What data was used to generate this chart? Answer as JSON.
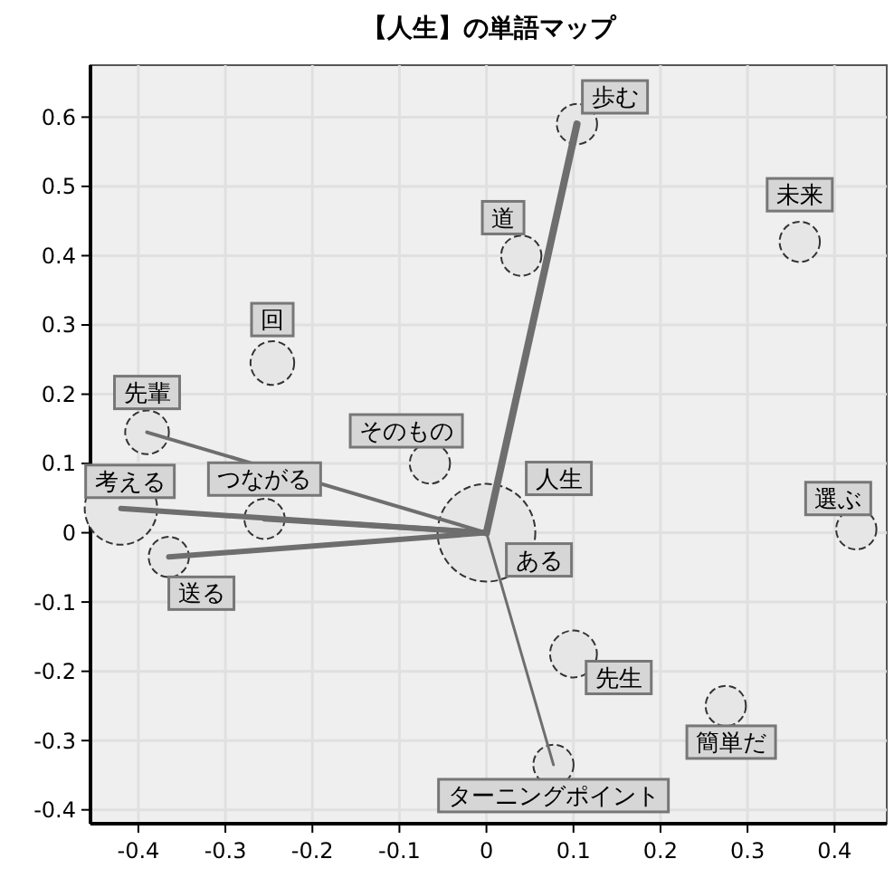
{
  "chart_data": {
    "type": "bubble",
    "title": "【人生】の単語マップ",
    "xlim": [
      -0.455,
      0.46
    ],
    "ylim": [
      -0.42,
      0.675
    ],
    "xticks": [
      -0.4,
      -0.3,
      -0.2,
      -0.1,
      0,
      0.1,
      0.2,
      0.3,
      0.4
    ],
    "yticks": [
      -0.4,
      -0.3,
      -0.2,
      -0.1,
      0,
      0.1,
      0.2,
      0.3,
      0.4,
      0.5,
      0.6
    ],
    "grid": true,
    "series": [
      {
        "type": "line",
        "color": "#6e6e6e",
        "x": [
          0,
          0.104
        ],
        "values": [
          0,
          0.59
        ]
      },
      {
        "type": "line",
        "color": "#6e6e6e",
        "x": [
          0,
          -0.39
        ],
        "values": [
          0,
          0.145
        ]
      },
      {
        "type": "line",
        "color": "#6e6e6e",
        "x": [
          0,
          -0.255
        ],
        "values": [
          0,
          0.02
        ]
      },
      {
        "type": "line",
        "color": "#6e6e6e",
        "x": [
          0,
          -0.42
        ],
        "values": [
          0,
          0.035
        ]
      },
      {
        "type": "line",
        "color": "#6e6e6e",
        "x": [
          0,
          -0.365
        ],
        "values": [
          0,
          -0.035
        ]
      },
      {
        "type": "line",
        "color": "#6e6e6e",
        "x": [
          0,
          0.077
        ],
        "values": [
          0,
          -0.335
        ]
      },
      {
        "color": "#e6e6e6",
        "x": [
          0.104,
          0.04,
          0.36,
          -0.246,
          -0.39,
          -0.065,
          -0.255,
          -0.42,
          -0.365,
          0,
          0.425,
          0.1,
          0.275,
          0.077
        ],
        "values": [
          0.59,
          0.4,
          0.42,
          0.245,
          0.145,
          0.1,
          0.02,
          0.035,
          -0.035,
          0,
          0.005,
          -0.175,
          -0.25,
          -0.335
        ],
        "sizes": [
          0.17,
          0.17,
          0.17,
          0.2,
          0.2,
          0.17,
          0.17,
          0.55,
          0.17,
          1,
          0.17,
          0.23,
          0.17,
          0.17
        ]
      }
    ],
    "annotations": [
      {
        "text": "歩む",
        "x": 0.104,
        "y": 0.59
      },
      {
        "text": "道",
        "x": 0.04,
        "y": 0.4
      },
      {
        "text": "未来",
        "x": 0.36,
        "y": 0.42
      },
      {
        "text": "回",
        "x": -0.246,
        "y": 0.245
      },
      {
        "text": "先輩",
        "x": -0.39,
        "y": 0.145
      },
      {
        "text": "そのもの",
        "x": -0.065,
        "y": 0.1
      },
      {
        "text": "つながる",
        "x": -0.255,
        "y": 0.02
      },
      {
        "text": "考える",
        "x": -0.42,
        "y": 0.035
      },
      {
        "text": "送る",
        "x": -0.365,
        "y": -0.035
      },
      {
        "text": "人生",
        "x": 0,
        "y": 0
      },
      {
        "text": "ある",
        "x": 0,
        "y": 0
      },
      {
        "text": "選ぶ",
        "x": 0.425,
        "y": 0.005
      },
      {
        "text": "先生",
        "x": 0.1,
        "y": -0.175
      },
      {
        "text": "簡単だ",
        "x": 0.275,
        "y": -0.25
      },
      {
        "text": "ターニングポイント",
        "x": 0.077,
        "y": -0.335
      }
    ]
  }
}
